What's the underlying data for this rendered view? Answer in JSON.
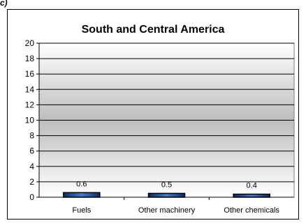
{
  "panel_label": "c)",
  "chart_data": {
    "type": "bar",
    "title": "South and Central America",
    "categories": [
      "Fuels",
      "Other machinery",
      "Other chemicals"
    ],
    "values": [
      0.6,
      0.5,
      0.4
    ],
    "data_labels": [
      "0.6",
      "0.5",
      "0.4"
    ],
    "ylim": [
      0,
      20
    ],
    "yticks": [
      0,
      2,
      4,
      6,
      8,
      10,
      12,
      14,
      16,
      18,
      20
    ],
    "grid": true,
    "legend": "none",
    "colors": {
      "bar": "#1f4e9e",
      "bar_edge": "#000000",
      "plot_top": "#ffffff",
      "plot_mid": "#bdbdbd"
    }
  }
}
